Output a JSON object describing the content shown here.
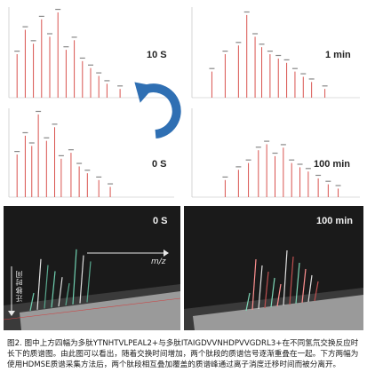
{
  "spectra": {
    "top_left_label": "10 S",
    "top_right_label": "1 min",
    "mid_left_label": "0 S",
    "mid_right_label": "100 min"
  },
  "mobility": {
    "left_label": "0 S",
    "right_label": "100 min",
    "mz_axis_label": "m/z",
    "drift_axis_label": "迁移时间"
  },
  "colors": {
    "spectrum_line": "#d9534f",
    "arrow_blue": "#2f6fb3",
    "dark_bg": "#1a1a1a"
  },
  "caption": "图2. 图中上方四幅为多肽YTNHTVLPEAL2+与多肽ITAIGDVVNHDPVVGDRL3+在不同氢氘交换反应时长下的质谱图。由此图可以看出，随着交换时间增加，两个肽段的质谱信号逐渐重叠在一起。下方两幅为使用HDMSE质谱采集方法后，两个肽段相互叠加覆盖的质谱峰通过离子淌度迁移时间而被分离开。"
}
